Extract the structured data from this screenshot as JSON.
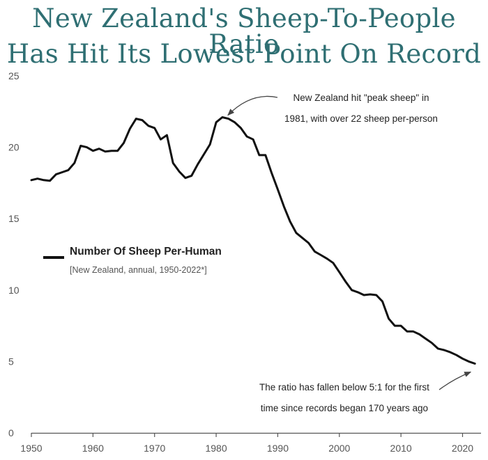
{
  "title_lines": [
    "New Zealand's Sheep-To-People Ratio",
    "Has Hit Its Lowest Point On Record"
  ],
  "chart_data": {
    "type": "line",
    "title": "New Zealand's Sheep-To-People Ratio Has Hit Its Lowest Point On Record",
    "xlabel": "",
    "ylabel": "",
    "xlim": [
      1950,
      2023
    ],
    "ylim": [
      0,
      25
    ],
    "xticks": [
      1950,
      1960,
      1970,
      1980,
      1990,
      2000,
      2010,
      2020
    ],
    "yticks": [
      0,
      5,
      10,
      15,
      20,
      25
    ],
    "grid": false,
    "legend": {
      "label": "Number Of Sheep Per-Human",
      "sublabel": "[New Zealand, annual, 1950-2022*]"
    },
    "series": [
      {
        "name": "Number Of Sheep Per-Human",
        "x": [
          1950,
          1951,
          1952,
          1953,
          1954,
          1955,
          1956,
          1957,
          1958,
          1959,
          1960,
          1961,
          1962,
          1963,
          1964,
          1965,
          1966,
          1967,
          1968,
          1969,
          1970,
          1971,
          1972,
          1973,
          1974,
          1975,
          1976,
          1977,
          1978,
          1979,
          1980,
          1981,
          1982,
          1983,
          1984,
          1985,
          1986,
          1987,
          1988,
          1989,
          1990,
          1991,
          1992,
          1993,
          1994,
          1995,
          1996,
          1997,
          1998,
          1999,
          2000,
          2001,
          2002,
          2003,
          2004,
          2005,
          2006,
          2007,
          2008,
          2009,
          2010,
          2011,
          2012,
          2013,
          2014,
          2015,
          2016,
          2017,
          2018,
          2019,
          2020,
          2021,
          2022
        ],
        "values": [
          17.7,
          17.8,
          17.7,
          17.65,
          18.1,
          18.25,
          18.4,
          18.9,
          20.1,
          20.0,
          19.75,
          19.9,
          19.7,
          19.75,
          19.75,
          20.3,
          21.3,
          22.0,
          21.9,
          21.5,
          21.35,
          20.55,
          20.85,
          18.9,
          18.3,
          17.85,
          18.0,
          18.8,
          19.5,
          20.2,
          21.75,
          22.1,
          22.0,
          21.75,
          21.35,
          20.75,
          20.55,
          19.45,
          19.45,
          18.2,
          17.05,
          15.85,
          14.8,
          14.0,
          13.65,
          13.3,
          12.7,
          12.45,
          12.2,
          11.9,
          11.25,
          10.6,
          10.0,
          9.85,
          9.65,
          9.7,
          9.65,
          9.2,
          8.0,
          7.5,
          7.5,
          7.1,
          7.1,
          6.9,
          6.6,
          6.3,
          5.9,
          5.8,
          5.65,
          5.45,
          5.2,
          5.0,
          4.85
        ]
      }
    ],
    "annotations": [
      {
        "lines": [
          "New Zealand hit \"peak sheep\" in",
          "1981, with over 22 sheep per-person"
        ],
        "arrow_to": [
          1981,
          22.1
        ]
      },
      {
        "lines": [
          "The ratio has fallen below 5:1 for the first",
          "time since records began 170 years ago"
        ],
        "arrow_to": [
          2022,
          4.85
        ]
      }
    ]
  },
  "colors": {
    "title": "#2f6f73",
    "line": "#111111",
    "axis": "#555555",
    "text": "#222222"
  }
}
